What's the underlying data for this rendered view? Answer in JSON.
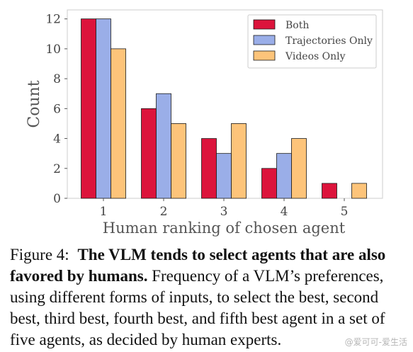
{
  "chart_data": {
    "type": "bar",
    "categories": [
      "1",
      "2",
      "3",
      "4",
      "5"
    ],
    "series": [
      {
        "name": "Both",
        "values": [
          12,
          6,
          4,
          2,
          1
        ],
        "color": "#dc143c"
      },
      {
        "name": "Trajectories Only",
        "values": [
          12,
          7,
          3,
          3,
          0
        ],
        "color": "#9aaee8"
      },
      {
        "name": "Videos Only",
        "values": [
          10,
          5,
          5,
          4,
          1
        ],
        "color": "#fdc47a"
      }
    ],
    "xlabel": "Human ranking of chosen agent",
    "ylabel": "Count",
    "ylim": [
      0,
      12.6
    ],
    "yticks": [
      "0",
      "2",
      "4",
      "6",
      "8",
      "10",
      "12"
    ],
    "legend_position": "top-right",
    "grid": false
  },
  "caption": {
    "label": "Figure 4:",
    "bold": "The VLM tends to select agents that are also favored by humans.",
    "text": "Frequency of a VLM’s preferences, using different forms of inputs, to select the best, second best, third best, fourth best, and fifth best agent in a set of five agents, as decided by human experts."
  },
  "watermark": "@爱可可-爱生活"
}
